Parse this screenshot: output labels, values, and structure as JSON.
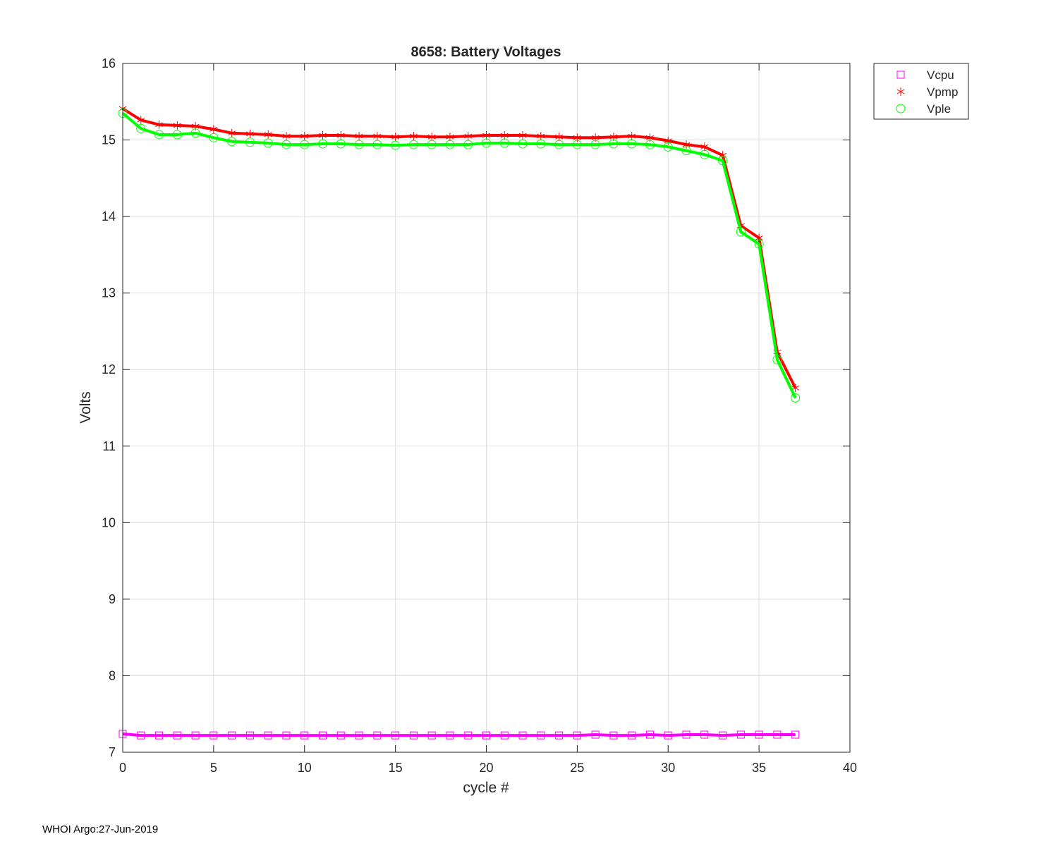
{
  "footer": "WHOI Argo:27-Jun-2019",
  "chart_data": {
    "type": "line",
    "title": "8658: Battery Voltages",
    "xlabel": "cycle #",
    "ylabel": "Volts",
    "xlim": [
      0,
      40
    ],
    "ylim": [
      7,
      16
    ],
    "xticks": [
      0,
      5,
      10,
      15,
      20,
      25,
      30,
      35,
      40
    ],
    "yticks": [
      7,
      8,
      9,
      10,
      11,
      12,
      13,
      14,
      15,
      16
    ],
    "grid": true,
    "legend_position": "outside-top-right",
    "x": [
      0,
      1,
      2,
      3,
      4,
      5,
      6,
      7,
      8,
      9,
      10,
      11,
      12,
      13,
      14,
      15,
      16,
      17,
      18,
      19,
      20,
      21,
      22,
      23,
      24,
      25,
      26,
      27,
      28,
      29,
      30,
      31,
      32,
      33,
      34,
      35,
      36,
      37
    ],
    "series": [
      {
        "name": "Vcpu",
        "color": "#ff00ff",
        "marker": "square",
        "values": [
          7.24,
          7.22,
          7.22,
          7.22,
          7.22,
          7.22,
          7.22,
          7.22,
          7.22,
          7.22,
          7.22,
          7.22,
          7.22,
          7.22,
          7.22,
          7.22,
          7.22,
          7.22,
          7.22,
          7.22,
          7.22,
          7.22,
          7.22,
          7.22,
          7.22,
          7.22,
          7.23,
          7.22,
          7.22,
          7.23,
          7.22,
          7.23,
          7.23,
          7.22,
          7.23,
          7.23,
          7.23,
          7.23
        ]
      },
      {
        "name": "Vpmp",
        "color": "#ff0000",
        "marker": "asterisk",
        "values": [
          15.41,
          15.26,
          15.2,
          15.19,
          15.18,
          15.14,
          15.09,
          15.08,
          15.07,
          15.05,
          15.05,
          15.06,
          15.06,
          15.05,
          15.05,
          15.04,
          15.05,
          15.04,
          15.04,
          15.05,
          15.06,
          15.06,
          15.06,
          15.05,
          15.04,
          15.03,
          15.03,
          15.04,
          15.05,
          15.03,
          14.99,
          14.94,
          14.91,
          14.8,
          13.88,
          13.72,
          12.23,
          11.76
        ]
      },
      {
        "name": "Vple",
        "color": "#00ff00",
        "marker": "circle",
        "values": [
          15.35,
          15.15,
          15.07,
          15.07,
          15.09,
          15.03,
          14.98,
          14.97,
          14.96,
          14.94,
          14.94,
          14.95,
          14.95,
          14.94,
          14.94,
          14.93,
          14.94,
          14.94,
          14.94,
          14.94,
          14.96,
          14.96,
          14.95,
          14.95,
          14.94,
          14.94,
          14.94,
          14.95,
          14.95,
          14.94,
          14.91,
          14.86,
          14.81,
          14.73,
          13.8,
          13.64,
          12.13,
          11.63
        ]
      }
    ]
  }
}
